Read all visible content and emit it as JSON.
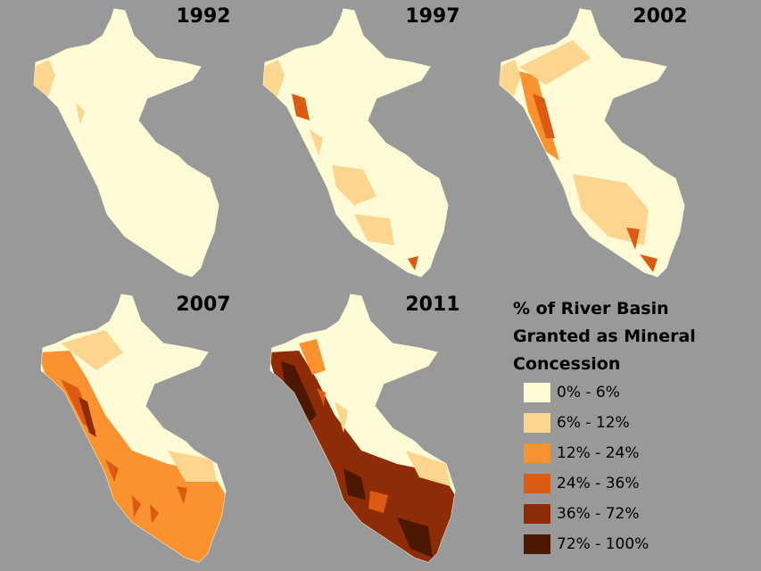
{
  "panels": [
    {
      "year": "1992"
    },
    {
      "year": "1997"
    },
    {
      "year": "2002"
    },
    {
      "year": "2007"
    },
    {
      "year": "2011"
    }
  ],
  "legend": {
    "title": [
      "% of River Basin",
      "Granted as Mineral",
      "Concession"
    ],
    "items": [
      {
        "label": "0% - 6%",
        "color": "#fffbd6"
      },
      {
        "label": "6% - 12%",
        "color": "#fcd58e"
      },
      {
        "label": "12% - 24%",
        "color": "#fb9230"
      },
      {
        "label": "24% - 36%",
        "color": "#dd5a12"
      },
      {
        "label": "36% - 72%",
        "color": "#8e2c07"
      },
      {
        "label": "72% - 100%",
        "color": "#4c1804"
      }
    ]
  }
}
